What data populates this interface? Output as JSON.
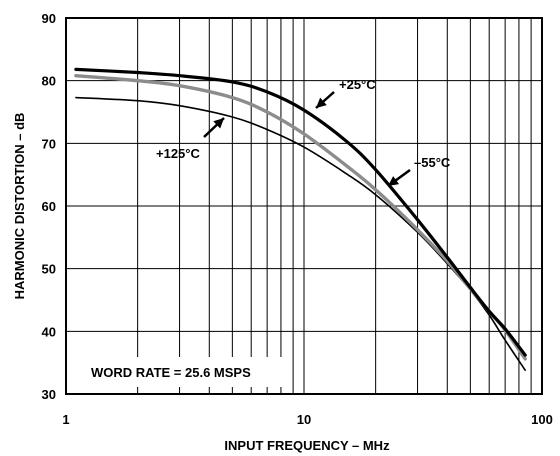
{
  "chart_data": {
    "type": "line",
    "xlabel": "INPUT FREQUENCY – MHz",
    "ylabel": "HARMONIC DISTORTION – dB",
    "x_scale": "log",
    "xlim": [
      1,
      100
    ],
    "ylim": [
      30,
      90
    ],
    "x_tick_labels": [
      "1",
      "10",
      "100"
    ],
    "y_tick_labels": [
      "30",
      "40",
      "50",
      "60",
      "70",
      "80",
      "90"
    ],
    "grid": true,
    "annotation": "WORD RATE = 25.6 MSPS",
    "series": [
      {
        "name": "+25°C",
        "color": "#000000",
        "x": [
          1.1,
          2,
          3,
          5,
          7,
          10,
          15,
          20,
          30,
          40,
          50,
          60,
          70,
          85
        ],
        "y": [
          81.8,
          81.3,
          80.8,
          79.8,
          78.2,
          75.3,
          70.4,
          65.8,
          57.8,
          51.8,
          47.0,
          43.2,
          40.4,
          36.2
        ]
      },
      {
        "name": "–55°C",
        "color": "#8c8c8c",
        "x": [
          1.1,
          2,
          3,
          5,
          7,
          10,
          15,
          20,
          30,
          40,
          50,
          60,
          70,
          85
        ],
        "y": [
          80.8,
          80.0,
          79.2,
          77.3,
          75.0,
          71.5,
          66.5,
          62.6,
          56.2,
          51.2,
          46.8,
          43.2,
          40.2,
          35.6
        ]
      },
      {
        "name": "+125°C",
        "color": "#000000",
        "x": [
          1.1,
          2,
          3,
          5,
          7,
          10,
          15,
          20,
          30,
          40,
          50,
          60,
          70,
          85
        ],
        "y": [
          77.3,
          76.8,
          76.0,
          74.2,
          72.2,
          69.4,
          65.2,
          61.8,
          55.8,
          50.8,
          46.6,
          42.6,
          38.6,
          33.8
        ]
      }
    ]
  }
}
